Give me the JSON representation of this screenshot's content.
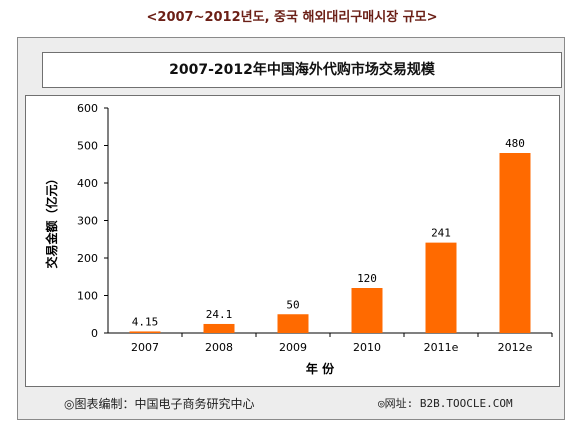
{
  "header": {
    "caption": "<2007~2012년도, 중국 해외대리구매시장 규모>"
  },
  "footer": {
    "source": "◎图表编制：中国电子商务研究中心",
    "website": "◎网址: B2B.TOOCLE.COM"
  },
  "chart_data": {
    "type": "bar",
    "title": "2007-2012年中国海外代购市场交易规模",
    "xlabel": "年 份",
    "ylabel": "交易金额（亿元）",
    "categories": [
      "2007",
      "2008",
      "2009",
      "2010",
      "2011e",
      "2012e"
    ],
    "values": [
      4.15,
      24.1,
      50,
      120,
      241,
      480
    ],
    "value_labels": [
      "4.15",
      "24.1",
      "50",
      "120",
      "241",
      "480"
    ],
    "ylim": [
      0,
      600
    ],
    "yticks": [
      0,
      100,
      200,
      300,
      400,
      500,
      600
    ],
    "bar_color": "#ff6a00",
    "grid": false,
    "legend": "none"
  }
}
